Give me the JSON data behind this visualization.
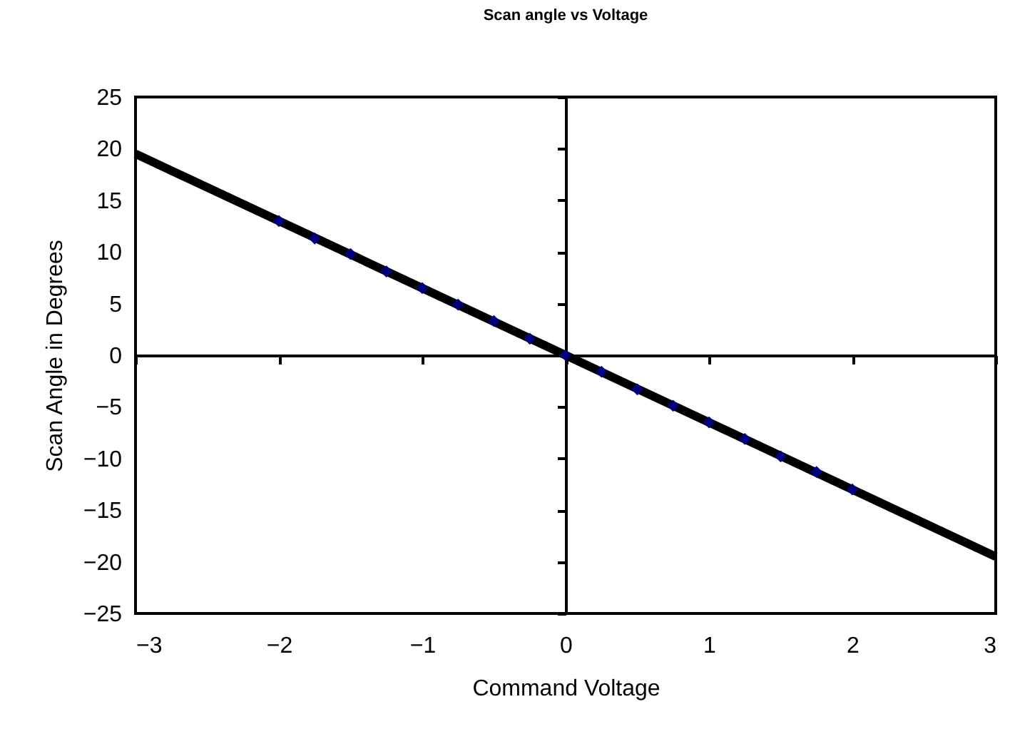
{
  "chart_data": {
    "type": "scatter",
    "title": "Scan angle vs Voltage",
    "xlabel": "Command Voltage",
    "ylabel": "Scan Angle in Degrees",
    "marker": "diamond",
    "xlim": [
      -3,
      3
    ],
    "xticks": [
      -3,
      -2,
      -1,
      0,
      1,
      2,
      3
    ],
    "ylim": [
      -25,
      25
    ],
    "yticks": [
      -25,
      -20,
      -15,
      -10,
      -5,
      0,
      5,
      10,
      15,
      20,
      25
    ],
    "series": [
      {
        "type": "line",
        "marker": "none",
        "color": "#000000",
        "x": [
          -3,
          3
        ],
        "values": [
          19.5,
          -19.5
        ]
      },
      {
        "color": "#000080",
        "x": [
          -2,
          -1.75,
          -1.5,
          -1.25,
          -1,
          -0.75,
          -0.5,
          -0.25,
          0,
          0.25,
          0.5,
          0.75,
          1,
          1.25,
          1.5,
          1.75,
          2
        ],
        "values": [
          13,
          11.3,
          9.8,
          8.1,
          6.5,
          4.9,
          3.3,
          1.6,
          0,
          -1.6,
          -3.3,
          -4.9,
          -6.5,
          -8.1,
          -9.8,
          -11.3,
          -13
        ]
      }
    ]
  }
}
